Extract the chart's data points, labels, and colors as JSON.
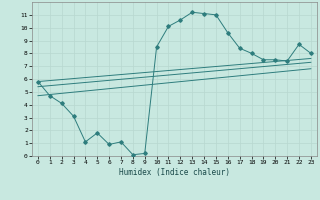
{
  "x": [
    0,
    1,
    2,
    3,
    4,
    5,
    6,
    7,
    8,
    9,
    10,
    11,
    12,
    13,
    14,
    15,
    16,
    17,
    18,
    19,
    20,
    21,
    22,
    23
  ],
  "y_main": [
    5.8,
    4.7,
    4.1,
    3.1,
    1.1,
    1.8,
    0.9,
    1.1,
    0.1,
    0.2,
    8.5,
    10.1,
    10.6,
    11.2,
    11.1,
    11.0,
    9.6,
    8.4,
    8.0,
    7.5,
    7.5,
    7.4,
    8.7,
    8.0
  ],
  "line_color": "#2E7D7D",
  "bg_color": "#C8E8E0",
  "grid_color": "#B8D8D0",
  "xlabel": "Humidex (Indice chaleur)",
  "xlim": [
    -0.5,
    23.5
  ],
  "ylim": [
    0,
    12
  ],
  "yticks": [
    0,
    1,
    2,
    3,
    4,
    5,
    6,
    7,
    8,
    9,
    10,
    11
  ],
  "xticks": [
    0,
    1,
    2,
    3,
    4,
    5,
    6,
    7,
    8,
    9,
    10,
    11,
    12,
    13,
    14,
    15,
    16,
    17,
    18,
    19,
    20,
    21,
    22,
    23
  ],
  "reg1_y_start": 5.8,
  "reg1_y_end": 7.6,
  "reg2_y_start": 5.4,
  "reg2_y_end": 7.3,
  "reg3_y_start": 4.7,
  "reg3_y_end": 6.8
}
